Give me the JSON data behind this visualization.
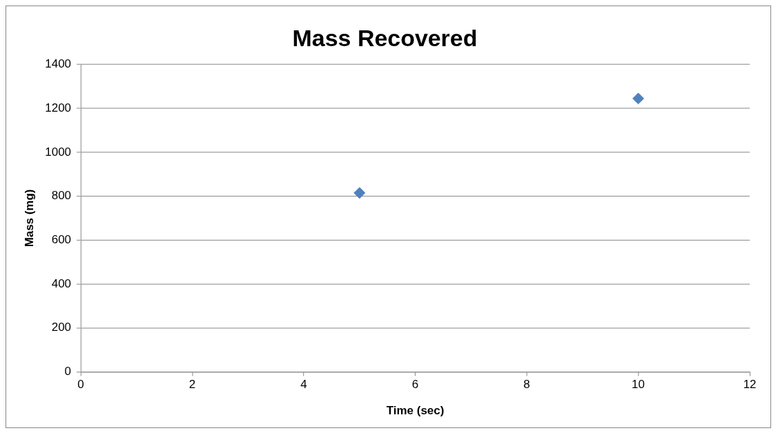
{
  "chart_data": {
    "type": "scatter",
    "title": "Mass Recovered",
    "xlabel": "Time (sec)",
    "ylabel": "Mass (mg)",
    "x": [
      5,
      10
    ],
    "series": [
      {
        "color": "#4f81bd",
        "values": [
          815,
          1245
        ]
      }
    ],
    "xlim": [
      0,
      12
    ],
    "xticks": [
      0,
      2,
      4,
      6,
      8,
      10,
      12
    ],
    "ylim": [
      0,
      1400
    ],
    "yticks": [
      0,
      200,
      400,
      600,
      800,
      1000,
      1200,
      1400
    ],
    "grid": "y",
    "legend": false,
    "marker": "diamond"
  }
}
